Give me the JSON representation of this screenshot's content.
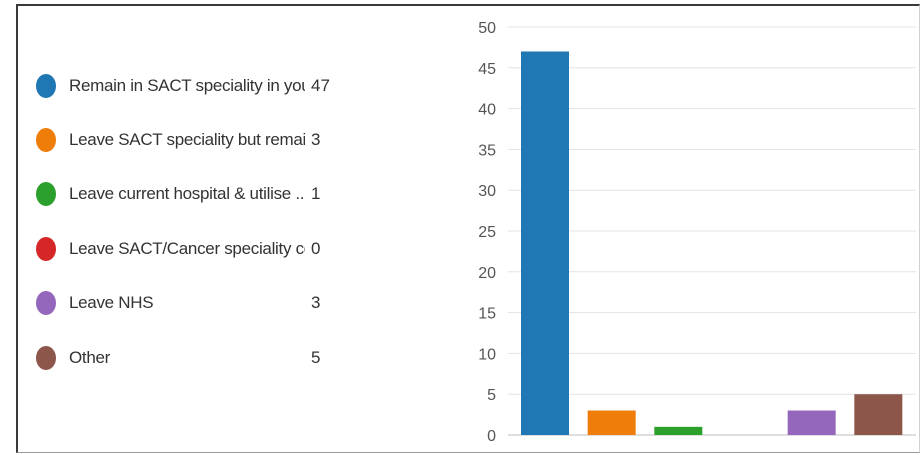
{
  "legend": {
    "items": [
      {
        "label": "Remain in SACT speciality in you...",
        "count": "47",
        "color": "#1f77b4"
      },
      {
        "label": "Leave SACT speciality but remai...",
        "count": "3",
        "color": "#ef7d0a"
      },
      {
        "label": "Leave current hospital & utilise ...",
        "count": "1",
        "color": "#2ca02c"
      },
      {
        "label": "Leave SACT/Cancer speciality co...",
        "count": "0",
        "color": "#d62728"
      },
      {
        "label": "Leave NHS",
        "count": "3",
        "color": "#9467bd"
      },
      {
        "label": "Other",
        "count": "5",
        "color": "#8c564b"
      }
    ]
  },
  "chart_data": {
    "type": "bar",
    "categories": [
      "Remain in SACT speciality in you...",
      "Leave SACT speciality but remai...",
      "Leave current hospital & utilise ...",
      "Leave SACT/Cancer speciality co...",
      "Leave NHS",
      "Other"
    ],
    "values": [
      47,
      3,
      1,
      0,
      3,
      5
    ],
    "colors": [
      "#1f77b4",
      "#ef7d0a",
      "#2ca02c",
      "#d62728",
      "#9467bd",
      "#8c564b"
    ],
    "ylim": [
      0,
      50
    ],
    "yticks": [
      0,
      5,
      10,
      15,
      20,
      25,
      30,
      35,
      40,
      45,
      50
    ],
    "grid": true,
    "legend_position": "left"
  }
}
